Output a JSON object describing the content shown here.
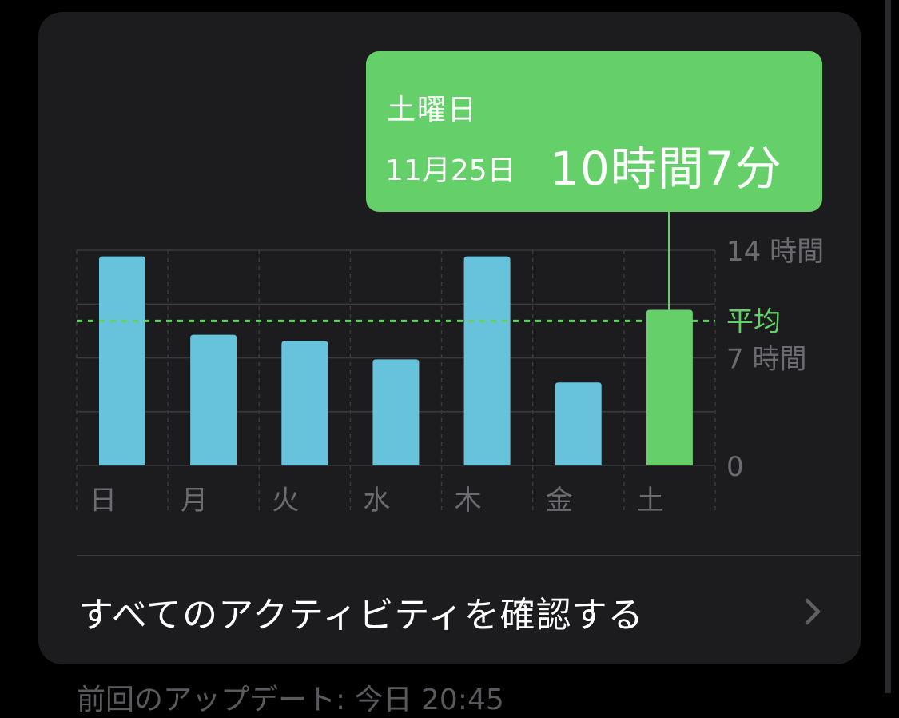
{
  "tooltip": {
    "day": "土曜日",
    "date": "11月25日",
    "duration": "10時間7分"
  },
  "chart_data": {
    "type": "bar",
    "categories": [
      "日",
      "月",
      "火",
      "水",
      "木",
      "金",
      "土"
    ],
    "values": [
      13.6,
      8.5,
      8.1,
      6.9,
      13.6,
      5.4,
      10.12
    ],
    "selected_index": 6,
    "average": 9.4,
    "average_label": "平均",
    "y_tick_labels": [
      {
        "value": 14,
        "label": "14 時間"
      },
      {
        "value": 7,
        "label": "7 時間"
      },
      {
        "value": 0,
        "label": "0"
      }
    ],
    "ylim": [
      0,
      14
    ],
    "grid": true,
    "colors": {
      "bar": "#67c2dc",
      "selected_bar": "#65d06a",
      "average_line": "#65d06a",
      "grid": "#3a3a3c",
      "axis_label": "#6b6b70"
    }
  },
  "activity_link": {
    "label": "すべてのアクティビティを確認する",
    "icon": "chevron-right-icon"
  },
  "footer": {
    "text": "前回のアップデート: 今日 20:45"
  },
  "colors": {
    "background": "#000000",
    "card": "#1c1c1e",
    "accent": "#65d06a"
  }
}
